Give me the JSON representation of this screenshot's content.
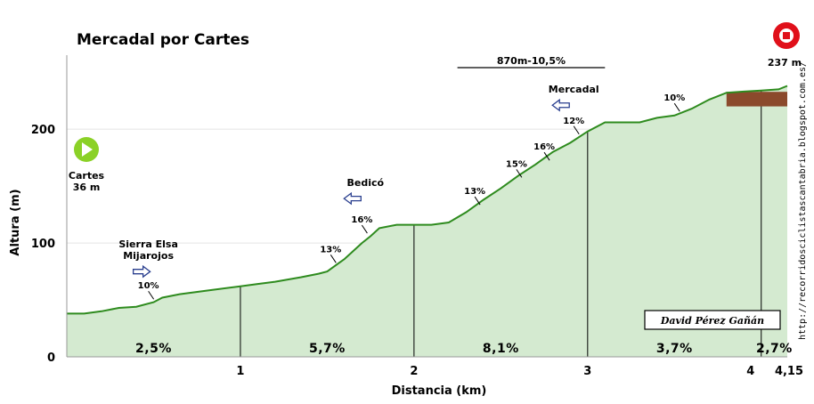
{
  "chart_data": {
    "type": "area",
    "title": "Mercadal por Cartes",
    "xlabel": "Distancia (km)",
    "ylabel": "Altura (m)",
    "xlim": [
      0,
      4.15
    ],
    "ylim": [
      0,
      265
    ],
    "x_ticks": [
      {
        "value": 1,
        "label": "1"
      },
      {
        "value": 2,
        "label": "2"
      },
      {
        "value": 3,
        "label": "3"
      },
      {
        "value": 4,
        "label": "4"
      },
      {
        "value": 4.15,
        "label": "4,15"
      }
    ],
    "y_ticks": [
      0,
      100,
      200
    ],
    "grid": "horizontal",
    "fill_color": "#d4ead0",
    "line_color": "#2e8b1e",
    "profile": {
      "x": [
        0,
        0.1,
        0.2,
        0.3,
        0.4,
        0.5,
        0.55,
        0.65,
        0.8,
        1.0,
        1.1,
        1.2,
        1.35,
        1.45,
        1.5,
        1.6,
        1.7,
        1.75,
        1.8,
        1.9,
        2.0,
        2.1,
        2.2,
        2.3,
        2.4,
        2.5,
        2.6,
        2.7,
        2.8,
        2.9,
        3.0,
        3.1,
        3.2,
        3.3,
        3.4,
        3.5,
        3.6,
        3.7,
        3.8,
        3.9,
        4.0,
        4.1,
        4.15
      ],
      "y": [
        38,
        38,
        40,
        43,
        44,
        48,
        52,
        55,
        58,
        62,
        64,
        66,
        70,
        73,
        75,
        86,
        100,
        106,
        113,
        116,
        116,
        116,
        118,
        127,
        138,
        148,
        159,
        169,
        180,
        188,
        198,
        206,
        206,
        206,
        210,
        212,
        218,
        226,
        232,
        233,
        234,
        235,
        238
      ]
    },
    "km_markers": [
      1,
      2,
      3,
      4
    ],
    "segment_gradients": [
      {
        "x": 0.5,
        "label": "2,5%"
      },
      {
        "x": 1.5,
        "label": "5,7%"
      },
      {
        "x": 2.5,
        "label": "8,1%"
      },
      {
        "x": 3.5,
        "label": "3,7%"
      },
      {
        "x": 4.075,
        "label": "2,7%"
      }
    ],
    "slope_labels": [
      {
        "x": 0.47,
        "y": 60,
        "label": "10%"
      },
      {
        "x": 1.52,
        "y": 92,
        "label": "13%"
      },
      {
        "x": 1.7,
        "y": 118,
        "label": "16%"
      },
      {
        "x": 2.35,
        "y": 143,
        "label": "13%"
      },
      {
        "x": 2.59,
        "y": 167,
        "label": "15%"
      },
      {
        "x": 2.75,
        "y": 182,
        "label": "16%"
      },
      {
        "x": 2.92,
        "y": 205,
        "label": "12%"
      },
      {
        "x": 3.5,
        "y": 225,
        "label": "10%"
      }
    ],
    "places": [
      {
        "x": 0.47,
        "y": 96,
        "lines": [
          "Sierra Elsa",
          "Mijarojos"
        ],
        "arrow": "right"
      },
      {
        "x": 1.72,
        "y": 150,
        "lines": [
          "Bedicó"
        ],
        "arrow": "left"
      },
      {
        "x": 2.92,
        "y": 232,
        "lines": [
          "Mercadal"
        ],
        "arrow": "left"
      }
    ],
    "start": {
      "label": "Cartes",
      "altitude": "36 m",
      "icon": "green-play-icon",
      "color": "#8bd127"
    },
    "finish": {
      "altitude": "237 m",
      "icon": "red-stop-icon",
      "color": "#e0101a"
    },
    "climb_bracket": {
      "x_start": 2.25,
      "x_end": 3.1,
      "label": "870m-10,5%"
    },
    "summit_block": {
      "x_start": 3.8,
      "x_end": 4.15,
      "y_bottom": 220,
      "color": "#8b4a2c"
    },
    "author": "David Pérez Gañán",
    "url": "http://recorridosciclistascantabria.blogspot.com.es/"
  }
}
